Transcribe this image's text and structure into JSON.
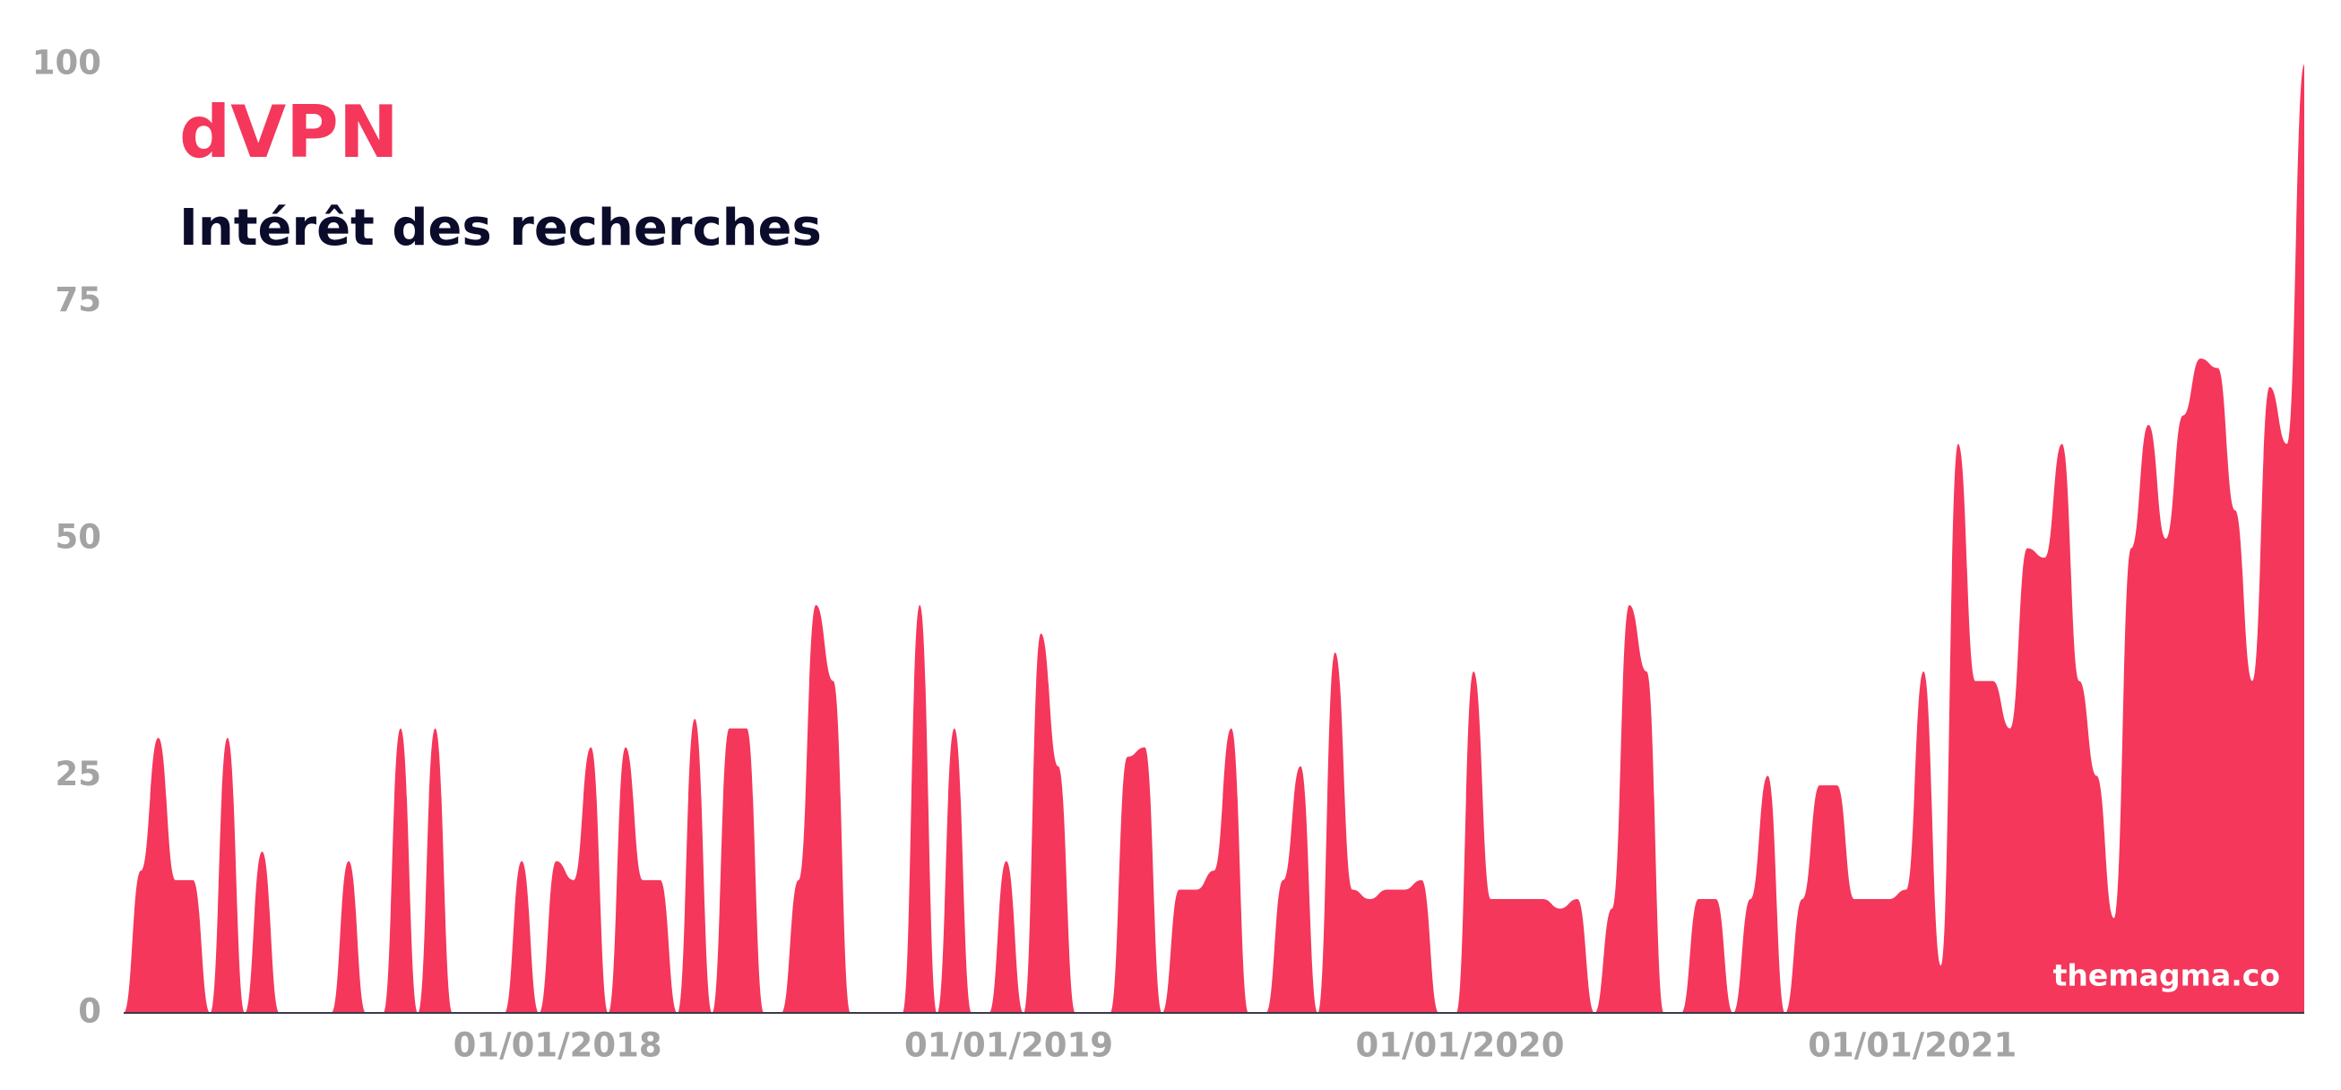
{
  "chart_data": {
    "type": "area",
    "title": "dVPN",
    "subtitle": "Intérêt des recherches",
    "annotation": "themagma.co",
    "color": "#f4375b",
    "grid": false,
    "ylim": [
      0,
      100
    ],
    "yticks": [
      0,
      25,
      50,
      75,
      100
    ],
    "xlim": [
      "2017-01-15",
      "2021-11-14"
    ],
    "xticks": [
      {
        "value": "2018-01-01",
        "label": "01/01/2018"
      },
      {
        "value": "2019-01-01",
        "label": "01/01/2019"
      },
      {
        "value": "2020-01-01",
        "label": "01/01/2020"
      },
      {
        "value": "2021-01-01",
        "label": "01/01/2021"
      }
    ],
    "x": [
      "2017-01-15",
      "2017-01-29",
      "2017-02-12",
      "2017-02-26",
      "2017-03-12",
      "2017-03-26",
      "2017-04-09",
      "2017-04-23",
      "2017-05-07",
      "2017-05-21",
      "2017-06-04",
      "2017-06-18",
      "2017-07-02",
      "2017-07-16",
      "2017-07-30",
      "2017-08-13",
      "2017-08-27",
      "2017-09-10",
      "2017-09-24",
      "2017-10-08",
      "2017-10-22",
      "2017-11-05",
      "2017-11-19",
      "2017-12-03",
      "2017-12-17",
      "2017-12-31",
      "2018-01-14",
      "2018-01-28",
      "2018-02-11",
      "2018-02-25",
      "2018-03-11",
      "2018-03-25",
      "2018-04-08",
      "2018-04-22",
      "2018-05-06",
      "2018-05-20",
      "2018-06-03",
      "2018-06-17",
      "2018-07-01",
      "2018-07-15",
      "2018-07-29",
      "2018-08-12",
      "2018-08-26",
      "2018-09-09",
      "2018-09-23",
      "2018-10-07",
      "2018-10-21",
      "2018-11-04",
      "2018-11-18",
      "2018-12-02",
      "2018-12-16",
      "2018-12-30",
      "2019-01-13",
      "2019-01-27",
      "2019-02-10",
      "2019-02-24",
      "2019-03-10",
      "2019-03-24",
      "2019-04-07",
      "2019-04-21",
      "2019-05-05",
      "2019-05-19",
      "2019-06-02",
      "2019-06-16",
      "2019-06-30",
      "2019-07-14",
      "2019-07-28",
      "2019-08-11",
      "2019-08-25",
      "2019-09-08",
      "2019-09-22",
      "2019-10-06",
      "2019-10-20",
      "2019-11-03",
      "2019-11-17",
      "2019-12-01",
      "2019-12-15",
      "2019-12-29",
      "2020-01-12",
      "2020-01-26",
      "2020-02-09",
      "2020-02-23",
      "2020-03-08",
      "2020-03-22",
      "2020-04-05",
      "2020-04-19",
      "2020-05-03",
      "2020-05-17",
      "2020-05-31",
      "2020-06-14",
      "2020-06-28",
      "2020-07-12",
      "2020-07-26",
      "2020-08-09",
      "2020-08-23",
      "2020-09-06",
      "2020-09-20",
      "2020-10-04",
      "2020-10-18",
      "2020-11-01",
      "2020-11-15",
      "2020-11-29",
      "2020-12-13",
      "2020-12-27",
      "2021-01-10",
      "2021-01-24",
      "2021-02-07",
      "2021-02-21",
      "2021-03-07",
      "2021-03-21",
      "2021-04-04",
      "2021-04-18",
      "2021-05-02",
      "2021-05-16",
      "2021-05-30",
      "2021-06-13",
      "2021-06-27",
      "2021-07-11",
      "2021-07-25",
      "2021-08-08",
      "2021-08-22",
      "2021-09-05",
      "2021-09-19",
      "2021-10-03",
      "2021-10-17",
      "2021-10-31",
      "2021-11-14"
    ],
    "values": [
      0,
      15,
      29,
      14,
      14,
      0,
      29,
      0,
      17,
      0,
      0,
      0,
      0,
      16,
      0,
      0,
      30,
      0,
      30,
      0,
      0,
      0,
      0,
      16,
      0,
      16,
      14,
      28,
      0,
      28,
      14,
      14,
      0,
      31,
      0,
      30,
      30,
      0,
      0,
      14,
      43,
      35,
      0,
      0,
      0,
      0,
      43,
      0,
      30,
      0,
      0,
      16,
      0,
      40,
      26,
      0,
      0,
      0,
      27,
      28,
      0,
      13,
      13,
      15,
      30,
      0,
      0,
      14,
      26,
      0,
      38,
      13,
      12,
      13,
      13,
      14,
      0,
      0,
      36,
      12,
      12,
      12,
      12,
      11,
      12,
      0,
      11,
      43,
      36,
      0,
      0,
      12,
      12,
      0,
      12,
      25,
      0,
      12,
      24,
      24,
      12,
      12,
      12,
      13,
      36,
      5,
      60,
      35,
      35,
      30,
      49,
      48,
      60,
      35,
      25,
      10,
      49,
      62,
      50,
      63,
      69,
      68,
      53,
      35,
      66,
      60,
      100
    ]
  }
}
